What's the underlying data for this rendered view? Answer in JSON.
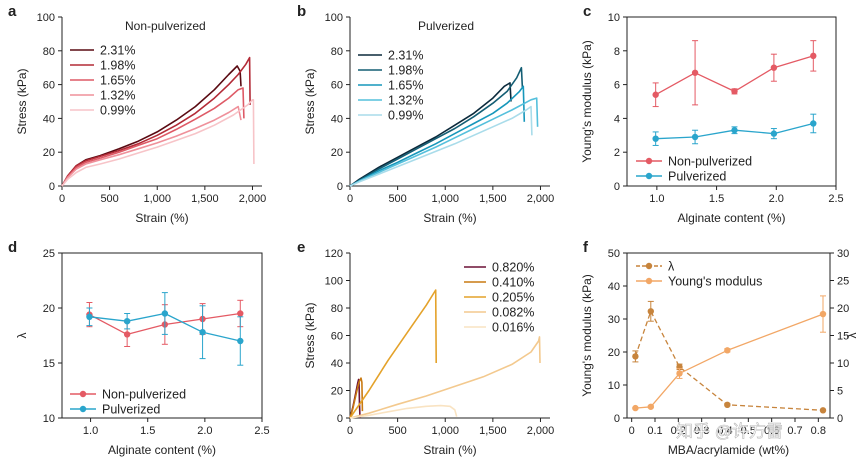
{
  "chart_data": [
    {
      "panel": "a",
      "type": "line",
      "title": "Non-pulverized",
      "xlabel": "Strain (%)",
      "ylabel": "Stress (kPa)",
      "xlim": [
        0,
        2100
      ],
      "ylim": [
        0,
        100
      ],
      "xticks": [
        0,
        500,
        1000,
        1500,
        2000
      ],
      "xtick_labels": [
        "0",
        "500",
        "1,000",
        "1,500",
        "2,000"
      ],
      "yticks": [
        0,
        20,
        40,
        60,
        80,
        100
      ],
      "series": [
        {
          "name": "2.31%",
          "color": "#5a0a12",
          "x": [
            0,
            60,
            150,
            250,
            400,
            600,
            800,
            1000,
            1200,
            1400,
            1600,
            1750,
            1840,
            1870,
            1880
          ],
          "y": [
            0,
            6,
            12,
            15.5,
            18,
            22,
            26.5,
            32,
            39,
            47,
            57,
            66,
            71,
            68,
            59
          ]
        },
        {
          "name": "1.98%",
          "color": "#b32b37",
          "x": [
            0,
            60,
            150,
            250,
            400,
            600,
            800,
            1000,
            1200,
            1400,
            1600,
            1750,
            1850,
            1930,
            1970,
            1975
          ],
          "y": [
            0,
            6,
            12,
            15,
            17.5,
            21,
            25,
            30,
            36,
            43,
            52,
            60,
            66,
            72,
            76,
            48
          ]
        },
        {
          "name": "1.65%",
          "color": "#de5a66",
          "x": [
            0,
            60,
            150,
            250,
            400,
            600,
            800,
            1000,
            1200,
            1400,
            1600,
            1750,
            1850,
            1900,
            1910
          ],
          "y": [
            0,
            5.5,
            11,
            14,
            16.5,
            20,
            24,
            28,
            33.5,
            39.5,
            46,
            52,
            57,
            58,
            40
          ]
        },
        {
          "name": "1.32%",
          "color": "#ef909a",
          "x": [
            0,
            60,
            150,
            250,
            400,
            600,
            800,
            1000,
            1200,
            1400,
            1600,
            1750,
            1850,
            1880
          ],
          "y": [
            0,
            5,
            10,
            13,
            15.5,
            18.5,
            22,
            25.5,
            29.5,
            34,
            39,
            43.5,
            47,
            39
          ]
        },
        {
          "name": "0.99%",
          "color": "#f7c4c8",
          "x": [
            0,
            60,
            150,
            250,
            400,
            600,
            800,
            1000,
            1200,
            1400,
            1600,
            1800,
            1950,
            2000,
            2010,
            2015
          ],
          "y": [
            0,
            4,
            8,
            11,
            13,
            16,
            19.5,
            23,
            27,
            31,
            36,
            42,
            48,
            51,
            51,
            13
          ]
        }
      ]
    },
    {
      "panel": "b",
      "type": "line",
      "title": "Pulverized",
      "xlabel": "Strain (%)",
      "ylabel": "Stress (kPa)",
      "xlim": [
        0,
        2100
      ],
      "ylim": [
        0,
        100
      ],
      "xticks": [
        0,
        500,
        1000,
        1500,
        2000
      ],
      "xtick_labels": [
        "0",
        "500",
        "1,000",
        "1,500",
        "2,000"
      ],
      "yticks": [
        0,
        20,
        40,
        60,
        80,
        100
      ],
      "series": [
        {
          "name": "2.31%",
          "color": "#0b2a3c",
          "x": [
            0,
            100,
            300,
            500,
            700,
            900,
            1100,
            1300,
            1500,
            1620,
            1680,
            1690
          ],
          "y": [
            0,
            4,
            11,
            17,
            23,
            29,
            36,
            43,
            52,
            59,
            61,
            50
          ]
        },
        {
          "name": "1.98%",
          "color": "#145e74",
          "x": [
            0,
            100,
            300,
            500,
            700,
            900,
            1100,
            1300,
            1500,
            1650,
            1750,
            1800,
            1810
          ],
          "y": [
            0,
            3.5,
            10,
            16,
            22,
            28,
            34,
            41,
            49,
            56,
            64,
            70,
            58
          ]
        },
        {
          "name": "1.65%",
          "color": "#1797bb",
          "x": [
            0,
            100,
            300,
            500,
            700,
            900,
            1100,
            1300,
            1500,
            1650,
            1780,
            1820,
            1830
          ],
          "y": [
            0,
            3,
            9,
            14,
            19.5,
            25,
            31,
            37,
            43,
            49,
            56,
            59,
            38
          ]
        },
        {
          "name": "1.32%",
          "color": "#55c0dc",
          "x": [
            0,
            100,
            300,
            500,
            700,
            900,
            1100,
            1300,
            1500,
            1700,
            1900,
            1960,
            1970
          ],
          "y": [
            0,
            3,
            8,
            13,
            18,
            23,
            28.5,
            34,
            39.5,
            45,
            51,
            52,
            35
          ]
        },
        {
          "name": "0.99%",
          "color": "#a9dcea",
          "x": [
            0,
            100,
            300,
            500,
            700,
            900,
            1100,
            1300,
            1500,
            1700,
            1850,
            1900,
            1910
          ],
          "y": [
            0,
            2.5,
            7,
            11.5,
            16,
            20.5,
            25,
            30,
            35,
            40,
            45,
            47,
            30
          ]
        }
      ]
    },
    {
      "panel": "c",
      "type": "scatter",
      "xlabel": "Alginate content (%)",
      "ylabel": "Young's modulus (kPa)",
      "xlim": [
        0.75,
        2.5
      ],
      "ylim": [
        0,
        10
      ],
      "xticks": [
        1.0,
        1.5,
        2.0,
        2.5
      ],
      "xtick_labels": [
        "1.0",
        "1.5",
        "2.0",
        "2.5"
      ],
      "yticks": [
        0,
        2,
        4,
        6,
        8,
        10
      ],
      "legend": "bottom-left",
      "series": [
        {
          "name": "Non-pulverized",
          "color": "#e45a64",
          "x": [
            0.99,
            1.32,
            1.65,
            1.98,
            2.31
          ],
          "y": [
            5.4,
            6.7,
            5.6,
            7.0,
            7.7
          ],
          "err": [
            0.7,
            1.9,
            0.15,
            0.8,
            0.9
          ]
        },
        {
          "name": "Pulverized",
          "color": "#2aa5cc",
          "x": [
            0.99,
            1.32,
            1.65,
            1.98,
            2.31
          ],
          "y": [
            2.8,
            2.9,
            3.3,
            3.1,
            3.7
          ],
          "err": [
            0.4,
            0.4,
            0.2,
            0.3,
            0.55
          ]
        }
      ]
    },
    {
      "panel": "d",
      "type": "scatter",
      "xlabel": "Alginate content (%)",
      "ylabel": "λ",
      "xlim": [
        0.75,
        2.5
      ],
      "ylim": [
        10,
        25
      ],
      "xticks": [
        1.0,
        1.5,
        2.0,
        2.5
      ],
      "xtick_labels": [
        "1.0",
        "1.5",
        "2.0",
        "2.5"
      ],
      "yticks": [
        10,
        15,
        20,
        25
      ],
      "legend": "bottom-left",
      "series": [
        {
          "name": "Non-pulverized",
          "color": "#e45a64",
          "x": [
            0.99,
            1.32,
            1.65,
            1.98,
            2.31
          ],
          "y": [
            19.4,
            17.6,
            18.5,
            19.0,
            19.5
          ],
          "err": [
            1.1,
            1.1,
            1.8,
            1.4,
            1.2
          ]
        },
        {
          "name": "Pulverized",
          "color": "#2aa5cc",
          "x": [
            0.99,
            1.32,
            1.65,
            1.98,
            2.31
          ],
          "y": [
            19.2,
            18.8,
            19.5,
            17.8,
            17.0
          ],
          "err": [
            0.8,
            0.7,
            1.9,
            2.4,
            2.2
          ]
        }
      ]
    },
    {
      "panel": "e",
      "type": "line",
      "xlabel": "Strain (%)",
      "ylabel": "Stress (kPa)",
      "xlim": [
        0,
        2100
      ],
      "ylim": [
        0,
        120
      ],
      "xticks": [
        0,
        500,
        1000,
        1500,
        2000
      ],
      "xtick_labels": [
        "0",
        "500",
        "1,000",
        "1,500",
        "2,000"
      ],
      "yticks": [
        0,
        20,
        40,
        60,
        80,
        100,
        120
      ],
      "series": [
        {
          "name": "0.820%",
          "color": "#6b1036",
          "x": [
            0,
            30,
            60,
            80,
            90,
            95,
            100,
            105
          ],
          "y": [
            0,
            8,
            18,
            25,
            28,
            27,
            10,
            0
          ]
        },
        {
          "name": "0.410%",
          "color": "#c97a12",
          "x": [
            0,
            30,
            60,
            80,
            90,
            100,
            115,
            125,
            130
          ],
          "y": [
            0,
            7,
            16,
            22,
            25,
            27,
            29,
            26,
            5
          ]
        },
        {
          "name": "0.205%",
          "color": "#e4a22a",
          "x": [
            0,
            200,
            400,
            600,
            800,
            890,
            900,
            905
          ],
          "y": [
            0,
            20,
            42,
            62,
            82,
            92,
            93,
            40
          ]
        },
        {
          "name": "0.082%",
          "color": "#f3c98e",
          "x": [
            0,
            200,
            500,
            800,
            1100,
            1400,
            1700,
            1900,
            1980,
            1990,
            1995
          ],
          "y": [
            0,
            3.5,
            10,
            16,
            23,
            30,
            39,
            48,
            56,
            59,
            40
          ]
        },
        {
          "name": "0.016%",
          "color": "#f9e3c2",
          "x": [
            0,
            200,
            400,
            600,
            800,
            950,
            1050,
            1100,
            1120
          ],
          "y": [
            0,
            2,
            4.5,
            7,
            8.5,
            9,
            8.5,
            6,
            1
          ]
        }
      ]
    },
    {
      "panel": "f",
      "type": "scatter",
      "xlabel": "MBA/acrylamide (wt%)",
      "ylabel": "Young's modulus (kPa)",
      "ylabel2": "λ",
      "xlim": [
        -0.02,
        0.85
      ],
      "ylim": [
        0,
        50
      ],
      "ylim2": [
        0,
        30
      ],
      "xticks": [
        0,
        0.1,
        0.2,
        0.3,
        0.4,
        0.5,
        0.6,
        0.7,
        0.8
      ],
      "xtick_labels": [
        "0",
        "0.1",
        "0.2",
        "0.3",
        "0.4",
        "0.5",
        "0.6",
        "0.7",
        "0.8"
      ],
      "yticks": [
        0,
        10,
        20,
        30,
        40,
        50
      ],
      "yticks2": [
        0,
        5,
        10,
        15,
        20,
        25,
        30
      ],
      "legend": "top-left",
      "series": [
        {
          "name": "λ",
          "axis": "right",
          "linestyle": "dashed",
          "color": "#c7843c",
          "x": [
            0.016,
            0.082,
            0.205,
            0.41,
            0.82
          ],
          "y": [
            11.2,
            19.4,
            9.3,
            2.4,
            1.4
          ],
          "err": [
            1.0,
            1.8,
            0.5,
            0.2,
            0.1
          ]
        },
        {
          "name": "Young's modulus",
          "axis": "left",
          "linestyle": "solid",
          "color": "#f2a766",
          "x": [
            0.016,
            0.082,
            0.205,
            0.41,
            0.82
          ],
          "y": [
            3.0,
            3.4,
            13.5,
            20.5,
            31.5
          ],
          "err": [
            0.2,
            0.3,
            1.5,
            0.5,
            5.5
          ]
        }
      ]
    }
  ],
  "watermark": "知乎 @许方雷"
}
